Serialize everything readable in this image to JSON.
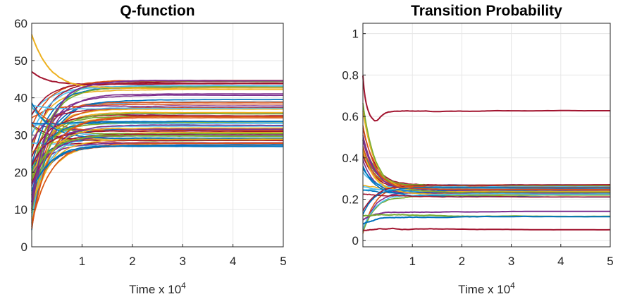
{
  "palette": [
    "#0072bd",
    "#d95319",
    "#edb120",
    "#7e2f8e",
    "#77ac30",
    "#4dbeee",
    "#a2142f"
  ],
  "chart_data": [
    {
      "type": "line",
      "title": "Q-function",
      "xlabel": "Time x 10",
      "xlabel_exp": "4",
      "ylabel": "",
      "xlim": [
        0,
        5
      ],
      "ylim": [
        0,
        60
      ],
      "xticks": [
        1,
        2,
        3,
        4,
        5
      ],
      "yticks": [
        0,
        10,
        20,
        30,
        40,
        50,
        60
      ],
      "grid": true,
      "convergence_tau": 0.35,
      "series_count": 60,
      "highlighted_series": [
        {
          "start": 47,
          "peak": 47.5,
          "final": 43.5,
          "color": "#a2142f"
        },
        {
          "start": 57,
          "peak": 57,
          "final": 42.5,
          "color": "#edb120"
        },
        {
          "start": 15,
          "peak": 15,
          "final": 27,
          "color": "#0072bd"
        },
        {
          "start": 18,
          "peak": 18,
          "final": 30,
          "color": "#77ac30"
        },
        {
          "start": 12,
          "peak": 12,
          "final": 44.5,
          "color": "#7e2f8e"
        }
      ],
      "final_value_range": [
        27,
        44.5
      ]
    },
    {
      "type": "line",
      "title": "Transition Probability",
      "xlabel": "Time x 10",
      "xlabel_exp": "4",
      "ylabel": "",
      "xlim": [
        0,
        5
      ],
      "ylim": [
        -0.03,
        1.05
      ],
      "xticks": [
        1,
        2,
        3,
        4,
        5
      ],
      "yticks": [
        0,
        0.2,
        0.4,
        0.6,
        0.8,
        1
      ],
      "ytick_labels": [
        "0",
        "0.2",
        "0.4",
        "0.6",
        "0.8",
        "1"
      ],
      "grid": true,
      "convergence_tau": 0.25,
      "series_count": 30,
      "highlighted_series": [
        {
          "start": 0.8,
          "dip": 0.58,
          "final": 0.63,
          "color": "#a2142f"
        },
        {
          "start": 0.05,
          "final": 0.05,
          "color": "#a2142f"
        },
        {
          "start": 0.1,
          "final": 0.14,
          "color": "#7e2f8e"
        },
        {
          "start": 0.12,
          "final": 0.12,
          "color": "#77ac30"
        },
        {
          "start": 0.08,
          "final": 0.12,
          "color": "#0072bd"
        }
      ],
      "final_value_range": [
        0.22,
        0.27
      ]
    }
  ]
}
